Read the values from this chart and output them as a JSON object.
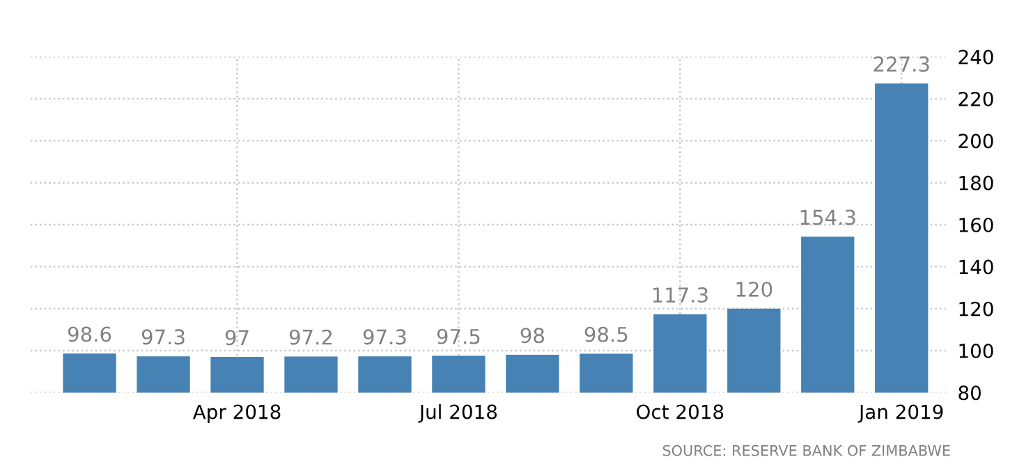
{
  "chart_data": {
    "type": "bar",
    "categories": [
      null,
      null,
      "Apr 2018",
      null,
      null,
      "Jul 2018",
      null,
      null,
      "Oct 2018",
      null,
      null,
      "Jan 2019"
    ],
    "values": [
      98.6,
      97.3,
      97,
      97.2,
      97.3,
      97.5,
      98,
      98.5,
      117.3,
      120,
      154.3,
      227.3
    ],
    "color": "#4682b4",
    "ylim": [
      80,
      240
    ],
    "yticks": [
      80,
      100,
      120,
      140,
      160,
      180,
      200,
      220,
      240
    ],
    "grid": true,
    "data_labels": true,
    "annotations": [
      "SOURCE: RESERVE BANK OF ZIMBABWE"
    ]
  }
}
